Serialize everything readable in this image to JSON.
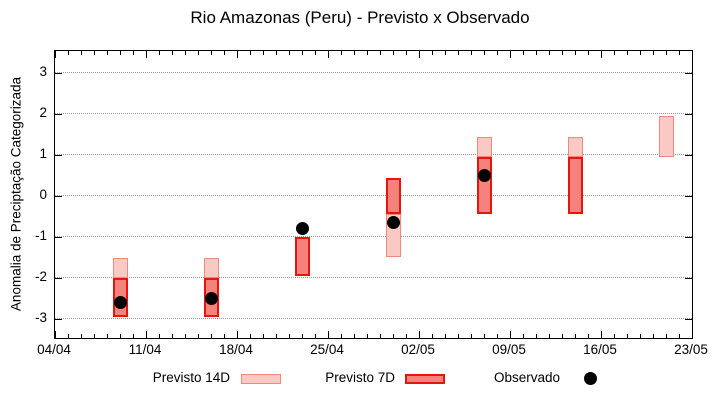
{
  "title": "Rio Amazonas (Peru) - Previsto x Observado",
  "chart_data": {
    "type": "bar",
    "subtype": "forecast-interval-boxes-with-observed-scatter",
    "title": "Rio Amazonas (Peru) - Previsto x Observado",
    "xlabel": "",
    "ylabel": "Anomalia de Preciptação Categorizada",
    "ylim": [
      -3.5,
      3.5
    ],
    "y_ticks": [
      3,
      2,
      1,
      0,
      -1,
      -2,
      -3
    ],
    "x_tick_labels": [
      "04/04",
      "11/04",
      "18/04",
      "25/04",
      "02/05",
      "09/05",
      "16/05",
      "23/05"
    ],
    "x_axis_days_span": 49,
    "x_major_tick_every_days": 7,
    "x_minor_tick_every_days": 1,
    "grid": "horizontal dotted",
    "legend_position": "bottom-center",
    "series_legend": [
      "Previsto 14D",
      "Previsto 7D",
      "Observado"
    ],
    "groups": [
      {
        "date": "09/04",
        "day": 5,
        "previsto14": [
          -2.0,
          -1.5
        ],
        "previsto7": [
          -2.95,
          -2.0
        ],
        "observado": -2.6
      },
      {
        "date": "16/04",
        "day": 12,
        "previsto14": [
          -2.0,
          -1.5
        ],
        "previsto7": [
          -2.95,
          -2.0
        ],
        "observado": -2.5
      },
      {
        "date": "23/04",
        "day": 19,
        "previsto14": null,
        "previsto7": [
          -1.95,
          -1.0
        ],
        "observado": -0.8
      },
      {
        "date": "30/04",
        "day": 26,
        "previsto14": [
          -1.5,
          -0.45
        ],
        "previsto7": [
          -0.45,
          0.45
        ],
        "observado": -0.65
      },
      {
        "date": "07/05",
        "day": 33,
        "previsto14": [
          0.95,
          1.45
        ],
        "previsto7": [
          -0.45,
          0.95
        ],
        "observado": 0.5
      },
      {
        "date": "14/05",
        "day": 40,
        "previsto14": [
          0.95,
          1.45
        ],
        "previsto7": [
          -0.45,
          0.95
        ],
        "observado": null
      },
      {
        "date": "21/05",
        "day": 47,
        "previsto14": [
          0.95,
          1.95
        ],
        "previsto7": null,
        "observado": null
      }
    ]
  },
  "legend": {
    "previsto14_label": "Previsto 14D",
    "previsto7_label": "Previsto 7D",
    "observado_label": "Observado"
  },
  "colors": {
    "previsto14_fill": "#fbc9c3",
    "previsto14_border": "#f0897e",
    "previsto7_fill": "#f5827c",
    "previsto7_border": "#e8150a",
    "observado": "#000000",
    "grid": "#9a9a9a",
    "axis": "#000000",
    "background": "#ffffff"
  }
}
